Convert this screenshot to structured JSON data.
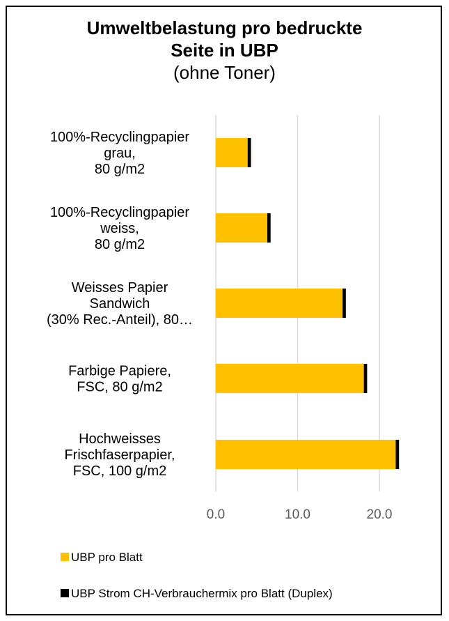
{
  "chart_data": {
    "type": "bar",
    "orientation": "horizontal",
    "stacked": true,
    "title": "Umweltbelastung pro bedruckte Seite in UBP",
    "subtitle": "(ohne Toner)",
    "categories": [
      [
        "100%-Recyclingpapier",
        "grau,",
        "80 g/m2"
      ],
      [
        "100%-Recyclingpapier",
        "weiss,",
        "80 g/m2"
      ],
      [
        "Weisses Papier",
        "Sandwich",
        "(30% Rec.-Anteil), 80…"
      ],
      [
        "Farbige Papiere,",
        "FSC, 80 g/m2"
      ],
      [
        "Hochweisses",
        "Frischfaserpapier,",
        "FSC, 100 g/m2"
      ]
    ],
    "series": [
      {
        "name": "UBP pro Blatt",
        "color": "#FFC000",
        "values": [
          3.9,
          6.3,
          15.5,
          18.1,
          22.0
        ]
      },
      {
        "name": "UBP Strom CH-Verbrauchermix pro Blatt (Duplex)",
        "color": "#000000",
        "values": [
          0.4,
          0.4,
          0.4,
          0.4,
          0.4
        ]
      }
    ],
    "x_ticks": [
      "0.0",
      "10.0",
      "20.0"
    ],
    "xlim": [
      0,
      25
    ],
    "grid": "vertical",
    "legend_position": "bottom"
  }
}
